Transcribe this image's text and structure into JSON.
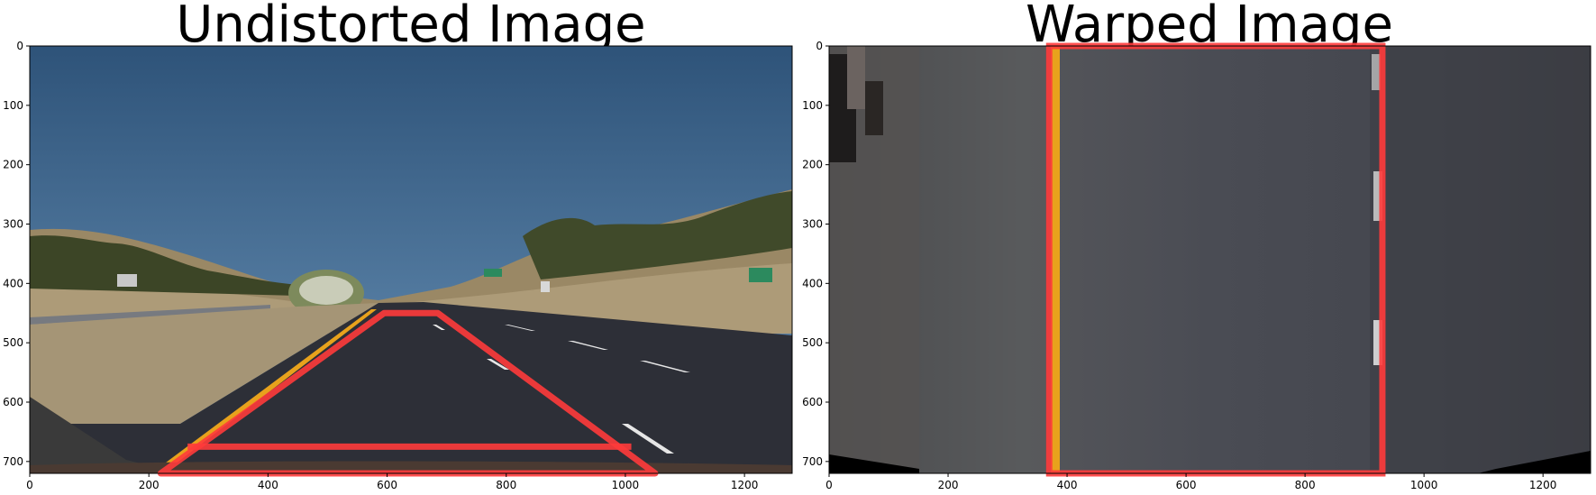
{
  "panels": [
    {
      "id": "undistorted",
      "title": "Undistorted Image",
      "x_ticks": [
        "0",
        "200",
        "400",
        "600",
        "800",
        "1000",
        "1200"
      ],
      "y_ticks": [
        "0",
        "100",
        "200",
        "300",
        "400",
        "500",
        "600",
        "700"
      ],
      "x_tick_values": [
        0,
        200,
        400,
        600,
        800,
        1000,
        1200
      ],
      "y_tick_values": [
        0,
        100,
        200,
        300,
        400,
        500,
        600,
        700
      ],
      "xlim": [
        0,
        1280
      ],
      "ylim": [
        720,
        0
      ],
      "overlay_polygon": [
        [
          220,
          720
        ],
        [
          595,
          450
        ],
        [
          685,
          450
        ],
        [
          1050,
          720
        ]
      ],
      "overlay_bottom_line_y": 675,
      "overlay_color": "#ff3b3b"
    },
    {
      "id": "warped",
      "title": "Warped Image",
      "x_ticks": [
        "0",
        "200",
        "400",
        "600",
        "800",
        "1000",
        "1200"
      ],
      "y_ticks": [
        "0",
        "100",
        "200",
        "300",
        "400",
        "500",
        "600",
        "700"
      ],
      "x_tick_values": [
        0,
        200,
        400,
        600,
        800,
        1000,
        1200
      ],
      "y_tick_values": [
        0,
        100,
        200,
        300,
        400,
        500,
        600,
        700
      ],
      "xlim": [
        0,
        1280
      ],
      "ylim": [
        720,
        0
      ],
      "overlay_rect": {
        "left": 370,
        "right": 930,
        "top": 0,
        "bottom": 720
      },
      "overlay_color": "#ff3b3b"
    }
  ],
  "colors": {
    "sky_top": "#2e5379",
    "sky_bottom": "#5d87ae",
    "hills": "#a08f6c",
    "trees": "#3e4a28",
    "road": "#2c2e36",
    "lane_yellow": "#e8a21c",
    "lane_white": "#e6e6e6",
    "warped_road": "#45474f",
    "overlay": "#ff3b3b"
  }
}
